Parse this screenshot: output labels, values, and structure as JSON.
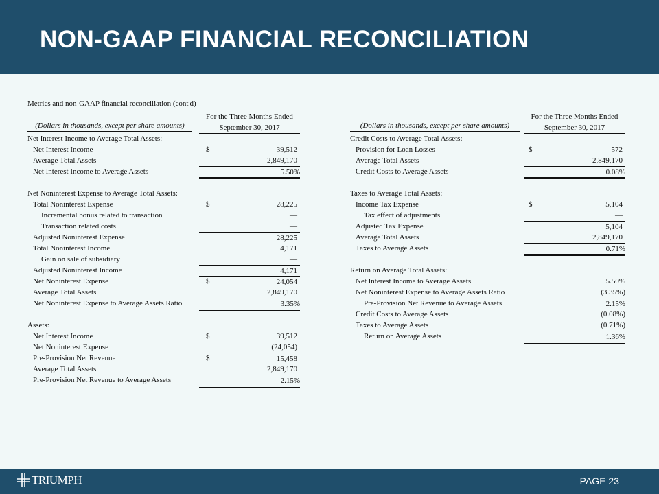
{
  "header": {
    "title": "NON-GAAP FINANCIAL RECONCILIATION"
  },
  "subtitle": "Metrics and non-GAAP financial reconciliation (cont'd)",
  "colors": {
    "header_bg": "#1f4e6b",
    "page_bg": "#f1f8f8"
  },
  "left_table": {
    "units": "(Dollars in thousands, except per share amounts)",
    "period_line1": "For the Three Months Ended",
    "period_line2": "September 30, 2017",
    "rows": [
      {
        "label": "Net Interest Income to Average Total Assets:",
        "indent": 0
      },
      {
        "label": "Net Interest Income",
        "indent": 1,
        "dollar": "$",
        "value": "39,512"
      },
      {
        "label": "Average Total Assets",
        "indent": 1,
        "value": "2,849,170"
      },
      {
        "label": "Net Interest Income to Average Assets",
        "indent": 1,
        "value": "5.50%",
        "style": "sub tot"
      },
      {
        "blank": true
      },
      {
        "label": "Net Noninterest Expense to Average Total Assets:",
        "indent": 0
      },
      {
        "label": "Total Noninterest Expense",
        "indent": 1,
        "dollar": "$",
        "value": "28,225"
      },
      {
        "label": "Incremental bonus related to transaction",
        "indent": 2,
        "value": "—"
      },
      {
        "label": "Transaction related costs",
        "indent": 2,
        "value": "—"
      },
      {
        "label": "Adjusted  Noninterest Expense",
        "indent": 1,
        "value": "28,225",
        "style": "sub"
      },
      {
        "label": "Total Noninterest Income",
        "indent": 1,
        "value": "4,171"
      },
      {
        "label": "Gain on sale of subsidiary",
        "indent": 2,
        "value": "—"
      },
      {
        "label": "Adjusted Noninterest Income",
        "indent": 1,
        "value": "4,171",
        "style": "sub"
      },
      {
        "label": "Net Noninterest Expense",
        "indent": 1,
        "dollar": "$",
        "value": "24,054",
        "style": "sub"
      },
      {
        "label": "Average Total Assets",
        "indent": 1,
        "value": "2,849,170"
      },
      {
        "label": "Net Noninterest Expense to Average Assets Ratio",
        "indent": 1,
        "value": "3.35%",
        "style": "sub tot"
      },
      {
        "blank": true
      },
      {
        "label": "Assets:",
        "indent": 0
      },
      {
        "label": "Net Interest Income",
        "indent": 1,
        "dollar": "$",
        "value": "39,512"
      },
      {
        "label": "Net Noninterest Expense",
        "indent": 1,
        "value": "(24,054)"
      },
      {
        "label": "Pre-Provision Net Revenue",
        "indent": 1,
        "dollar": "$",
        "value": "15,458",
        "style": "sub"
      },
      {
        "label": "Average Total Assets",
        "indent": 1,
        "value": "2,849,170"
      },
      {
        "label": "Pre-Provision Net Revenue to Average Assets",
        "indent": 1,
        "value": "2.15%",
        "style": "sub tot"
      }
    ]
  },
  "right_table": {
    "units": "(Dollars in thousands, except per share amounts)",
    "period_line1": "For the Three Months Ended",
    "period_line2": "September 30, 2017",
    "rows": [
      {
        "label": "Credit Costs to Average Total Assets:",
        "indent": 0
      },
      {
        "label": "Provision for Loan Losses",
        "indent": 1,
        "dollar": "$",
        "value": "572"
      },
      {
        "label": "Average Total Assets",
        "indent": 1,
        "value": "2,849,170"
      },
      {
        "label": "Credit Costs to Average Assets",
        "indent": 1,
        "value": "0.08%",
        "style": "sub tot"
      },
      {
        "blank": true
      },
      {
        "label": "Taxes to Average Total Assets:",
        "indent": 0
      },
      {
        "label": "Income Tax Expense",
        "indent": 1,
        "dollar": "$",
        "value": "5,104"
      },
      {
        "label": "Tax effect of adjustments",
        "indent": 2,
        "value": "—"
      },
      {
        "label": "Adjusted Tax Expense",
        "indent": 1,
        "value": "5,104",
        "style": "sub"
      },
      {
        "label": "Average Total Assets",
        "indent": 1,
        "value": "2,849,170"
      },
      {
        "label": "Taxes to Average Assets",
        "indent": 1,
        "value": "0.71%",
        "style": "sub tot"
      },
      {
        "blank": true
      },
      {
        "label": "Return on Average Total Assets:",
        "indent": 0
      },
      {
        "label": "Net Interest Income to Average Assets",
        "indent": 1,
        "value": "5.50%"
      },
      {
        "label": "Net Noninterest Expense to Average Assets Ratio",
        "indent": 1,
        "value": "(3.35%)"
      },
      {
        "label": "Pre-Provision Net Revenue to Average Assets",
        "indent": 2,
        "value": "2.15%",
        "style": "sub"
      },
      {
        "label": "Credit Costs to Average Assets",
        "indent": 1,
        "value": "(0.08%)"
      },
      {
        "label": "Taxes to Average Assets",
        "indent": 1,
        "value": "(0.71%)"
      },
      {
        "label": "Return on Average Assets",
        "indent": 2,
        "value": "1.36%",
        "style": "sub tot"
      }
    ]
  },
  "footer": {
    "logo_text": "TRIUMPH",
    "page_label": "PAGE 23"
  }
}
